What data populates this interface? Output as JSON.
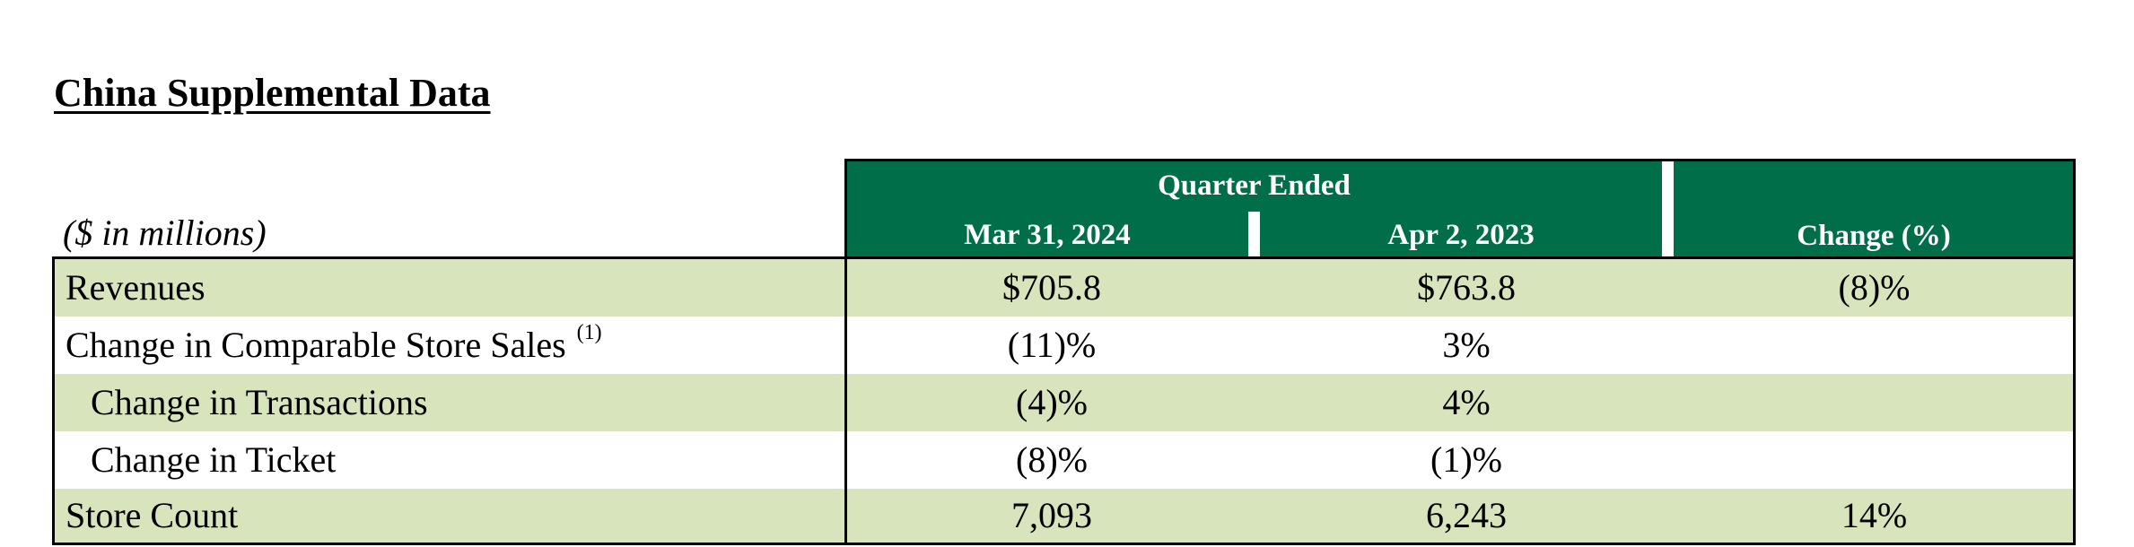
{
  "title": "China Supplemental Data",
  "units_label": "($ in millions)",
  "header": {
    "group_label": "Quarter Ended",
    "col1": "Mar 31, 2024",
    "col2": "Apr 2, 2023",
    "col3": "Change (%)"
  },
  "rows": [
    {
      "label": "Revenues",
      "footnote": "",
      "v1": "$705.8",
      "v2": "$763.8",
      "v3": "(8)%"
    },
    {
      "label": "Change in Comparable Store Sales",
      "footnote": "(1)",
      "v1": "(11)%",
      "v2": "3%",
      "v3": ""
    },
    {
      "label": "Change in Transactions",
      "footnote": "",
      "v1": "(4)%",
      "v2": "4%",
      "v3": ""
    },
    {
      "label": "Change in Ticket",
      "footnote": "",
      "v1": "(8)%",
      "v2": "(1)%",
      "v3": ""
    },
    {
      "label": "Store Count",
      "footnote": "",
      "v1": "7,093",
      "v2": "6,243",
      "v3": "14%"
    }
  ],
  "colors": {
    "header_green": "#006e49",
    "row_shade": "#d8e4bc"
  }
}
